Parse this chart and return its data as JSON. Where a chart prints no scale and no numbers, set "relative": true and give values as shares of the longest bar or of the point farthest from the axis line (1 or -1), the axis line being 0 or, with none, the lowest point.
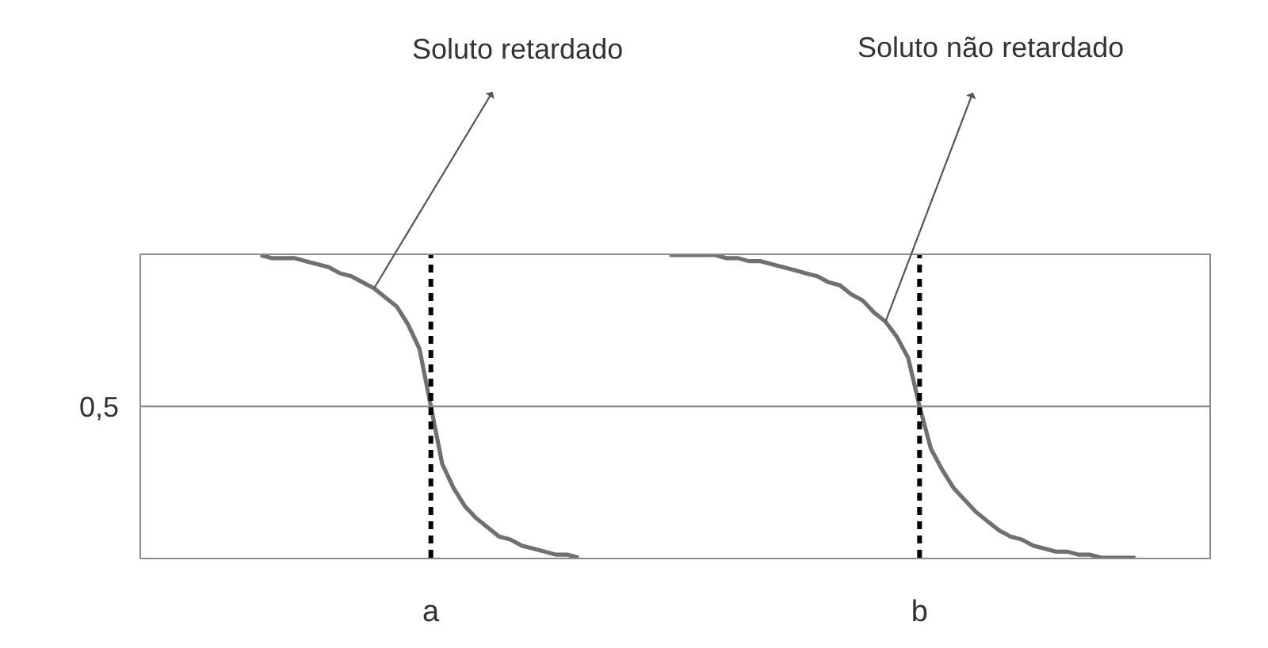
{
  "chart_data": {
    "type": "line",
    "relative": true,
    "categories": [
      null,
      null,
      null,
      null,
      null,
      null,
      null,
      null,
      null,
      null,
      null,
      null,
      null,
      null,
      null,
      null,
      null,
      null,
      null,
      null,
      null,
      null,
      null,
      null,
      null,
      "a",
      null,
      null,
      null,
      null,
      null,
      null,
      null,
      null,
      null,
      null,
      null,
      null,
      null,
      null,
      null,
      null,
      null,
      null,
      null,
      null,
      null,
      null,
      null,
      null,
      null,
      null,
      null,
      null,
      null,
      null,
      null,
      null,
      null,
      null,
      null,
      null,
      null,
      null,
      null,
      null,
      null,
      null,
      "b",
      null,
      null,
      null,
      null,
      null,
      null,
      null,
      null,
      null,
      null,
      null,
      null,
      null,
      null,
      null,
      null,
      null,
      null,
      null,
      null,
      null,
      null,
      null,
      null,
      null
    ],
    "series": [
      {
        "name": "Soluto retardado",
        "color": "#707070",
        "values": [
          null,
          null,
          null,
          null,
          null,
          null,
          null,
          null,
          null,
          null,
          1.0,
          0.99,
          0.99,
          0.99,
          0.98,
          0.97,
          0.96,
          0.94,
          0.93,
          0.91,
          0.89,
          0.86,
          0.83,
          0.77,
          0.69,
          0.5,
          0.31,
          0.23,
          0.17,
          0.13,
          0.1,
          0.07,
          0.06,
          0.04,
          0.03,
          0.02,
          0.01,
          0.01,
          0,
          null,
          null,
          null,
          null,
          null,
          null,
          null,
          null,
          null,
          null,
          null,
          null,
          null,
          null,
          null,
          null,
          null,
          null,
          null,
          null,
          null,
          null,
          null,
          null,
          null,
          null,
          null,
          null,
          null,
          null,
          null,
          null,
          null,
          null,
          null,
          null,
          null,
          null,
          null,
          null,
          null,
          null,
          null,
          null,
          null,
          null,
          null,
          null,
          null,
          null,
          null,
          null,
          null,
          null,
          null
        ]
      },
      {
        "name": "Soluto não retardado",
        "color": "#707070",
        "values": [
          null,
          null,
          null,
          null,
          null,
          null,
          null,
          null,
          null,
          null,
          null,
          null,
          null,
          null,
          null,
          null,
          null,
          null,
          null,
          null,
          null,
          null,
          null,
          null,
          null,
          null,
          null,
          null,
          null,
          null,
          null,
          null,
          null,
          null,
          null,
          null,
          null,
          null,
          null,
          null,
          null,
          null,
          null,
          null,
          null,
          null,
          1.0,
          1.0,
          1.0,
          1.0,
          1.0,
          0.99,
          0.99,
          0.98,
          0.98,
          0.97,
          0.96,
          0.95,
          0.94,
          0.93,
          0.91,
          0.9,
          0.87,
          0.85,
          0.81,
          0.78,
          0.73,
          0.66,
          0.5,
          0.36,
          0.29,
          0.23,
          0.19,
          0.15,
          0.12,
          0.09,
          0.07,
          0.06,
          0.04,
          0.03,
          0.02,
          0.02,
          0.01,
          0.01,
          0,
          0,
          0,
          0,
          null,
          null,
          null,
          null,
          null,
          null
        ]
      }
    ],
    "ref_lines": [
      {
        "axis": "x",
        "value": "a",
        "color": "#000000",
        "line_style": "dotted"
      },
      {
        "axis": "x",
        "value": "b",
        "color": "#000000",
        "line_style": "dotted"
      },
      {
        "axis": "y",
        "value": 0.5,
        "label": "0,5",
        "color": "#8c8c8c"
      }
    ]
  }
}
